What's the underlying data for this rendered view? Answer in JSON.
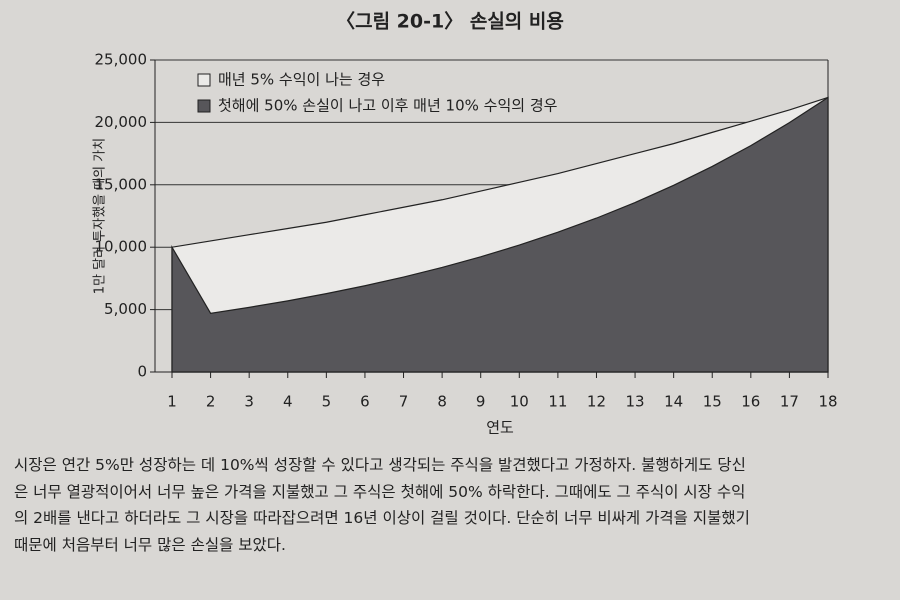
{
  "chart_data": {
    "type": "area",
    "title": "〈그림 20-1〉 손실의 비용",
    "x_label": "연도",
    "y_label": "1만 달러 투자했을 때의 가치",
    "x": [
      1,
      2,
      3,
      4,
      5,
      6,
      7,
      8,
      9,
      10,
      11,
      12,
      13,
      14,
      15,
      16,
      17,
      18
    ],
    "series": [
      {
        "name": "매년 5% 수익이 나는 경우",
        "color": "#ebeae8",
        "values": [
          10000,
          10500,
          11000,
          11500,
          12000,
          12600,
          13200,
          13800,
          14500,
          15200,
          15900,
          16700,
          17500,
          18300,
          19200,
          20100,
          21000,
          22000
        ]
      },
      {
        "name": "첫해에 50% 손실이 나고 이후 매년 10% 수익의 경우",
        "color": "#57565a",
        "values": [
          10000,
          4700,
          5180,
          5700,
          6280,
          6910,
          7610,
          8380,
          9230,
          10170,
          11200,
          12330,
          13580,
          14960,
          16470,
          18140,
          19980,
          22000
        ]
      }
    ],
    "xlim": [
      1,
      18
    ],
    "xticks": [
      1,
      2,
      3,
      4,
      5,
      6,
      7,
      8,
      9,
      10,
      11,
      12,
      13,
      14,
      15,
      16,
      17,
      18
    ],
    "ylim": [
      0,
      25000
    ],
    "yticks": [
      0,
      {
        "value": 5000,
        "label": "5,000"
      },
      {
        "value": 10000,
        "label": "10,000"
      },
      {
        "value": 15000,
        "label": "15,000"
      },
      {
        "value": 20000,
        "label": "20,000"
      },
      {
        "value": 25000,
        "label": "25,000"
      }
    ],
    "grid": true,
    "legend": "upper left"
  },
  "caption": [
    "시장은 연간 5%만 성장하는 데 10%씩 성장할 수 있다고 생각되는 주식을 발견했다고 가정하자. 불행하게도 당신",
    "은 너무 열광적이어서 너무 높은 가격을 지불했고 그 주식은 첫해에 50% 하락한다. 그때에도 그 주식이 시장 수익",
    "의 2배를 낸다고 하더라도 그 시장을 따라잡으려면 16년 이상이 걸릴 것이다. 단순히 너무 비싸게 가격을 지불했기",
    "때문에 처음부터 너무 많은 손실을 보았다."
  ]
}
